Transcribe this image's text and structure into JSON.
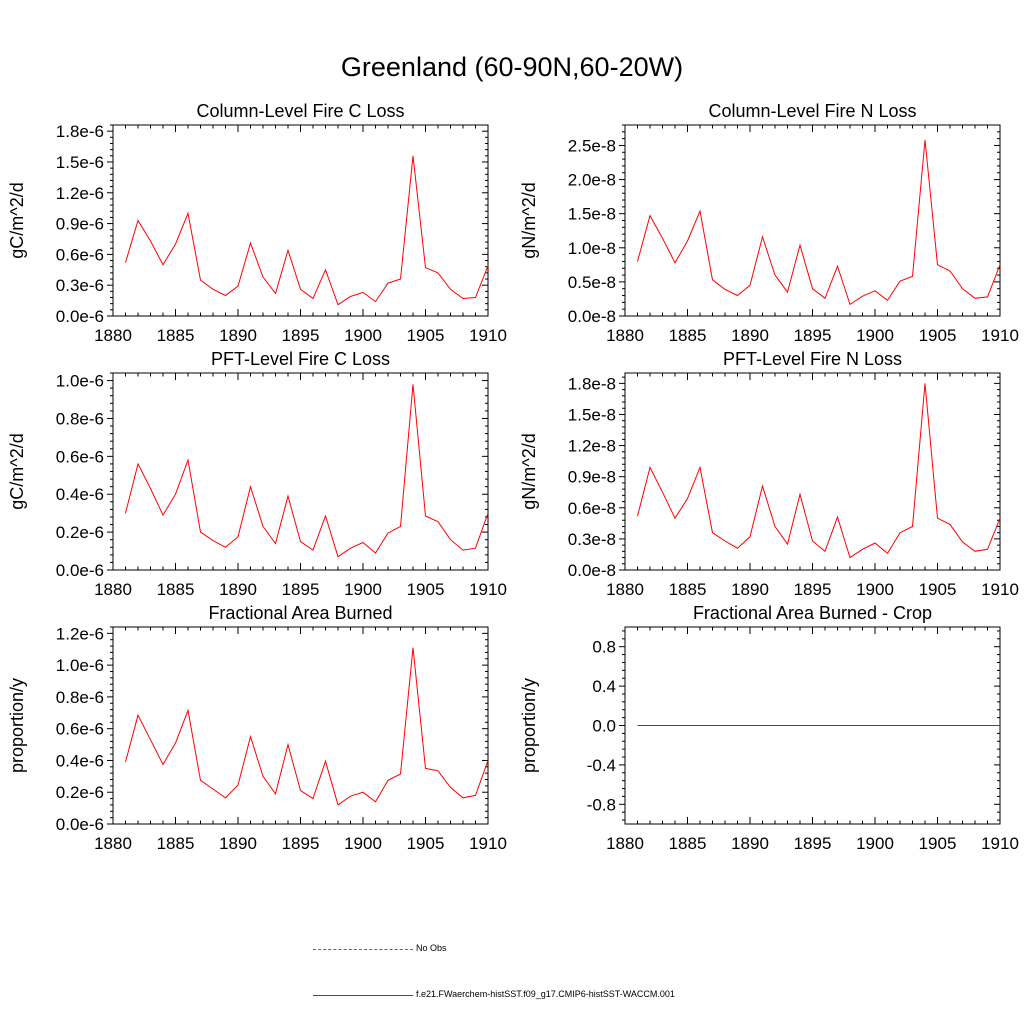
{
  "title": "Greenland (60-90N,60-20W)",
  "colors": {
    "model": "#ff0000",
    "obs": "#5555cc",
    "axis": "#000000"
  },
  "legend": [
    {
      "label": "No Obs",
      "style": "dashed",
      "color": "#5555cc"
    },
    {
      "label": "f.e21.FWaerchem-histSST.f09_g17.CMIP6-histSST-WACCM.001",
      "style": "solid",
      "color": "#ff0000"
    }
  ],
  "chart_data": [
    {
      "type": "line",
      "title": "Column-Level Fire C Loss",
      "ylabel": "gC/m^2/d",
      "xlim": [
        1880,
        1910
      ],
      "ylim": [
        0,
        1.86e-06
      ],
      "xticks": [
        1880,
        1885,
        1890,
        1895,
        1900,
        1905,
        1910
      ],
      "yticks": [
        0,
        3e-07,
        6e-07,
        9e-07,
        1.2e-06,
        1.5e-06,
        1.8e-06
      ],
      "yticklabels": [
        "0.0e-6",
        "0.3e-6",
        "0.6e-6",
        "0.9e-6",
        "1.2e-6",
        "1.5e-6",
        "1.8e-6"
      ],
      "grid": false,
      "x": [
        1881,
        1882,
        1883,
        1884,
        1885,
        1886,
        1887,
        1888,
        1889,
        1890,
        1891,
        1892,
        1893,
        1894,
        1895,
        1896,
        1897,
        1898,
        1899,
        1900,
        1901,
        1902,
        1903,
        1904,
        1905,
        1906,
        1907,
        1908,
        1909,
        1910
      ],
      "series": [
        {
          "values": [
            5.2e-07,
            9.3e-07,
            7.3e-07,
            5e-07,
            7e-07,
            1e-06,
            3.5e-07,
            2.6e-07,
            2e-07,
            2.9e-07,
            7.1e-07,
            3.8e-07,
            2.2e-07,
            6.4e-07,
            2.6e-07,
            1.7e-07,
            4.5e-07,
            1.1e-07,
            1.9e-07,
            2.3e-07,
            1.4e-07,
            3.2e-07,
            3.6e-07,
            1.56e-06,
            4.7e-07,
            4.2e-07,
            2.6e-07,
            1.7e-07,
            1.8e-07,
            4.9e-07
          ]
        }
      ]
    },
    {
      "type": "line",
      "title": "Column-Level Fire N Loss",
      "ylabel": "gN/m^2/d",
      "xlim": [
        1880,
        1910
      ],
      "ylim": [
        0,
        2.8e-08
      ],
      "xticks": [
        1880,
        1885,
        1890,
        1895,
        1900,
        1905,
        1910
      ],
      "yticks": [
        0,
        5e-09,
        1e-08,
        1.5e-08,
        2e-08,
        2.5e-08
      ],
      "yticklabels": [
        "0.0e-8",
        "0.5e-8",
        "1.0e-8",
        "1.5e-8",
        "2.0e-8",
        "2.5e-8"
      ],
      "grid": false,
      "x": [
        1881,
        1882,
        1883,
        1884,
        1885,
        1886,
        1887,
        1888,
        1889,
        1890,
        1891,
        1892,
        1893,
        1894,
        1895,
        1896,
        1897,
        1898,
        1899,
        1900,
        1901,
        1902,
        1903,
        1904,
        1905,
        1906,
        1907,
        1908,
        1909,
        1910
      ],
      "series": [
        {
          "values": [
            8e-09,
            1.47e-08,
            1.14e-08,
            7.8e-09,
            1.1e-08,
            1.54e-08,
            5.3e-09,
            3.9e-09,
            3e-09,
            4.5e-09,
            1.16e-08,
            6e-09,
            3.5e-09,
            1.04e-08,
            4e-09,
            2.6e-09,
            7.3e-09,
            1.7e-09,
            2.9e-09,
            3.7e-09,
            2.3e-09,
            5.1e-09,
            5.8e-09,
            2.58e-08,
            7.5e-09,
            6.6e-09,
            4e-09,
            2.6e-09,
            2.8e-09,
            7.5e-09
          ]
        }
      ]
    },
    {
      "type": "line",
      "title": "PFT-Level Fire C Loss",
      "ylabel": "gC/m^2/d",
      "xlim": [
        1880,
        1910
      ],
      "ylim": [
        0,
        1.04e-06
      ],
      "xticks": [
        1880,
        1885,
        1890,
        1895,
        1900,
        1905,
        1910
      ],
      "yticks": [
        0,
        2e-07,
        4e-07,
        6e-07,
        8e-07,
        1e-06
      ],
      "yticklabels": [
        "0.0e-6",
        "0.2e-6",
        "0.4e-6",
        "0.6e-6",
        "0.8e-6",
        "1.0e-6"
      ],
      "grid": false,
      "x": [
        1881,
        1882,
        1883,
        1884,
        1885,
        1886,
        1887,
        1888,
        1889,
        1890,
        1891,
        1892,
        1893,
        1894,
        1895,
        1896,
        1897,
        1898,
        1899,
        1900,
        1901,
        1902,
        1903,
        1904,
        1905,
        1906,
        1907,
        1908,
        1909,
        1910
      ],
      "series": [
        {
          "values": [
            3e-07,
            5.6e-07,
            4.3e-07,
            2.9e-07,
            4e-07,
            5.8e-07,
            2e-07,
            1.55e-07,
            1.2e-07,
            1.75e-07,
            4.4e-07,
            2.3e-07,
            1.4e-07,
            3.9e-07,
            1.5e-07,
            1.05e-07,
            2.85e-07,
            7e-08,
            1.15e-07,
            1.45e-07,
            9e-08,
            1.95e-07,
            2.3e-07,
            9.8e-07,
            2.85e-07,
            2.55e-07,
            1.6e-07,
            1.05e-07,
            1.15e-07,
            3e-07
          ]
        }
      ]
    },
    {
      "type": "line",
      "title": "PFT-Level Fire N Loss",
      "ylabel": "gN/m^2/d",
      "xlim": [
        1880,
        1910
      ],
      "ylim": [
        0,
        1.9e-08
      ],
      "xticks": [
        1880,
        1885,
        1890,
        1895,
        1900,
        1905,
        1910
      ],
      "yticks": [
        0,
        3e-09,
        6e-09,
        9e-09,
        1.2e-08,
        1.5e-08,
        1.8e-08
      ],
      "yticklabels": [
        "0.0e-8",
        "0.3e-8",
        "0.6e-8",
        "0.9e-8",
        "1.2e-8",
        "1.5e-8",
        "1.8e-8"
      ],
      "grid": false,
      "x": [
        1881,
        1882,
        1883,
        1884,
        1885,
        1886,
        1887,
        1888,
        1889,
        1890,
        1891,
        1892,
        1893,
        1894,
        1895,
        1896,
        1897,
        1898,
        1899,
        1900,
        1901,
        1902,
        1903,
        1904,
        1905,
        1906,
        1907,
        1908,
        1909,
        1910
      ],
      "series": [
        {
          "values": [
            5.2e-09,
            9.9e-09,
            7.5e-09,
            5e-09,
            6.9e-09,
            9.9e-09,
            3.6e-09,
            2.8e-09,
            2.1e-09,
            3.2e-09,
            8.1e-09,
            4.2e-09,
            2.5e-09,
            7.3e-09,
            2.8e-09,
            1.8e-09,
            5.1e-09,
            1.2e-09,
            2e-09,
            2.6e-09,
            1.6e-09,
            3.6e-09,
            4.2e-09,
            1.8e-08,
            5e-09,
            4.4e-09,
            2.7e-09,
            1.8e-09,
            2e-09,
            5e-09
          ]
        }
      ]
    },
    {
      "type": "line",
      "title": "Fractional Area Burned",
      "ylabel": "proportion/y",
      "xlim": [
        1880,
        1910
      ],
      "ylim": [
        0,
        1.24e-06
      ],
      "xticks": [
        1880,
        1885,
        1890,
        1895,
        1900,
        1905,
        1910
      ],
      "yticks": [
        0,
        2e-07,
        4e-07,
        6e-07,
        8e-07,
        1e-06,
        1.2e-06
      ],
      "yticklabels": [
        "0.0e-6",
        "0.2e-6",
        "0.4e-6",
        "0.6e-6",
        "0.8e-6",
        "1.0e-6",
        "1.2e-6"
      ],
      "grid": false,
      "x": [
        1881,
        1882,
        1883,
        1884,
        1885,
        1886,
        1887,
        1888,
        1889,
        1890,
        1891,
        1892,
        1893,
        1894,
        1895,
        1896,
        1897,
        1898,
        1899,
        1900,
        1901,
        1902,
        1903,
        1904,
        1905,
        1906,
        1907,
        1908,
        1909,
        1910
      ],
      "series": [
        {
          "values": [
            3.9e-07,
            6.85e-07,
            5.3e-07,
            3.75e-07,
            5.1e-07,
            7.15e-07,
            2.75e-07,
            2.2e-07,
            1.65e-07,
            2.45e-07,
            5.5e-07,
            3e-07,
            1.9e-07,
            5e-07,
            2.1e-07,
            1.6e-07,
            3.95e-07,
            1.2e-07,
            1.75e-07,
            2e-07,
            1.4e-07,
            2.75e-07,
            3.15e-07,
            1.11e-06,
            3.5e-07,
            3.35e-07,
            2.3e-07,
            1.65e-07,
            1.8e-07,
            4e-07
          ]
        }
      ]
    },
    {
      "type": "line",
      "title": "Fractional Area Burned - Crop",
      "ylabel": "proportion/y",
      "xlim": [
        1880,
        1910
      ],
      "ylim": [
        -1.0,
        1.0
      ],
      "xticks": [
        1880,
        1885,
        1890,
        1895,
        1900,
        1905,
        1910
      ],
      "yticks": [
        -0.8,
        -0.4,
        0.0,
        0.4,
        0.8
      ],
      "yticklabels": [
        "-0.8",
        "-0.4",
        "0.0",
        "0.4",
        "0.8"
      ],
      "grid": false,
      "x": [
        1881,
        1910
      ],
      "series": [
        {
          "values": [
            0,
            0
          ]
        }
      ]
    }
  ]
}
